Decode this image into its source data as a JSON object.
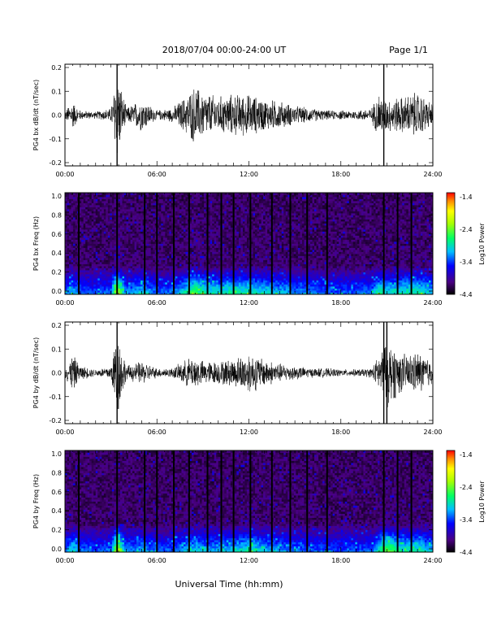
{
  "header": {
    "title": "2018/07/04  00:00-24:00 UT",
    "page": "Page 1/1"
  },
  "xlabel": "Universal Time (hh:mm)",
  "x_ticks": [
    "00:00",
    "06:00",
    "12:00",
    "18:00",
    "24:00"
  ],
  "chart_data": [
    {
      "type": "line",
      "ylabel": "PG4 bx dB/dt (nT/sec)",
      "xlim": [
        0,
        24
      ],
      "ylim": [
        -0.2,
        0.2
      ],
      "y_ticks": [
        "0.2",
        "0.1",
        "0.0",
        "-0.1",
        "-0.2"
      ],
      "spikes_hours": [
        3.4,
        20.8
      ],
      "activity_envelope": {
        "x": [
          0,
          0.5,
          1,
          2,
          3,
          3.4,
          4,
          5,
          6,
          7,
          8,
          8.5,
          9,
          10,
          11,
          12,
          13,
          14,
          15,
          16,
          17,
          18,
          19,
          20,
          20.5,
          21,
          22,
          23,
          24
        ],
        "amplitude": [
          0.02,
          0.06,
          0.02,
          0.015,
          0.03,
          0.2,
          0.03,
          0.07,
          0.02,
          0.03,
          0.09,
          0.13,
          0.1,
          0.08,
          0.09,
          0.09,
          0.07,
          0.06,
          0.04,
          0.03,
          0.02,
          0.02,
          0.02,
          0.03,
          0.1,
          0.07,
          0.08,
          0.1,
          0.05
        ]
      }
    },
    {
      "type": "heatmap",
      "ylabel": "PG4 bx Freq (Hz)",
      "xlim": [
        0,
        24
      ],
      "ylim": [
        0,
        1.0
      ],
      "y_ticks": [
        "1.0",
        "0.8",
        "0.6",
        "0.4",
        "0.2",
        "0.0"
      ],
      "colorbar": {
        "label": "Log10 Power",
        "ticks": [
          "-1.4",
          "-2.4",
          "-3.4",
          "-4.4"
        ],
        "range": [
          -4.4,
          -1.4
        ]
      },
      "gap_lines_hours": [
        0.9,
        3.4,
        5.2,
        6.0,
        7.1,
        8.1,
        9.3,
        10.2,
        11.0,
        12.1,
        13.5,
        14.7,
        15.8,
        17.1,
        20.8,
        21.7,
        22.6
      ]
    },
    {
      "type": "line",
      "ylabel": "PG4 by dB/dt (nT/sec)",
      "xlim": [
        0,
        24
      ],
      "ylim": [
        -0.2,
        0.2
      ],
      "y_ticks": [
        "0.2",
        "0.1",
        "0.0",
        "-0.1",
        "-0.2"
      ],
      "spikes_hours": [
        3.4,
        20.8,
        21.0
      ],
      "activity_envelope": {
        "x": [
          0,
          0.5,
          1,
          2,
          3,
          3.4,
          4,
          5,
          6,
          7,
          8,
          8.5,
          9,
          10,
          11,
          12,
          13,
          14,
          15,
          16,
          17,
          18,
          19,
          20,
          20.5,
          21,
          22,
          23,
          24
        ],
        "amplitude": [
          0.02,
          0.08,
          0.03,
          0.015,
          0.03,
          0.2,
          0.03,
          0.05,
          0.02,
          0.02,
          0.06,
          0.07,
          0.05,
          0.05,
          0.06,
          0.09,
          0.06,
          0.04,
          0.03,
          0.02,
          0.02,
          0.015,
          0.015,
          0.02,
          0.08,
          0.15,
          0.08,
          0.09,
          0.06
        ]
      }
    },
    {
      "type": "heatmap",
      "ylabel": "PG4 by Freq (Hz)",
      "xlim": [
        0,
        24
      ],
      "ylim": [
        0,
        1.0
      ],
      "y_ticks": [
        "1.0",
        "0.8",
        "0.6",
        "0.4",
        "0.2",
        "0.0"
      ],
      "colorbar": {
        "label": "Log10 Power",
        "ticks": [
          "-1.4",
          "-2.4",
          "-3.4",
          "-4.4"
        ],
        "range": [
          -4.4,
          -1.4
        ]
      },
      "gap_lines_hours": [
        0.9,
        3.4,
        5.2,
        6.0,
        7.1,
        8.1,
        9.3,
        10.2,
        11.0,
        12.1,
        13.5,
        14.7,
        15.8,
        17.1,
        20.8,
        21.7,
        22.6
      ]
    }
  ]
}
